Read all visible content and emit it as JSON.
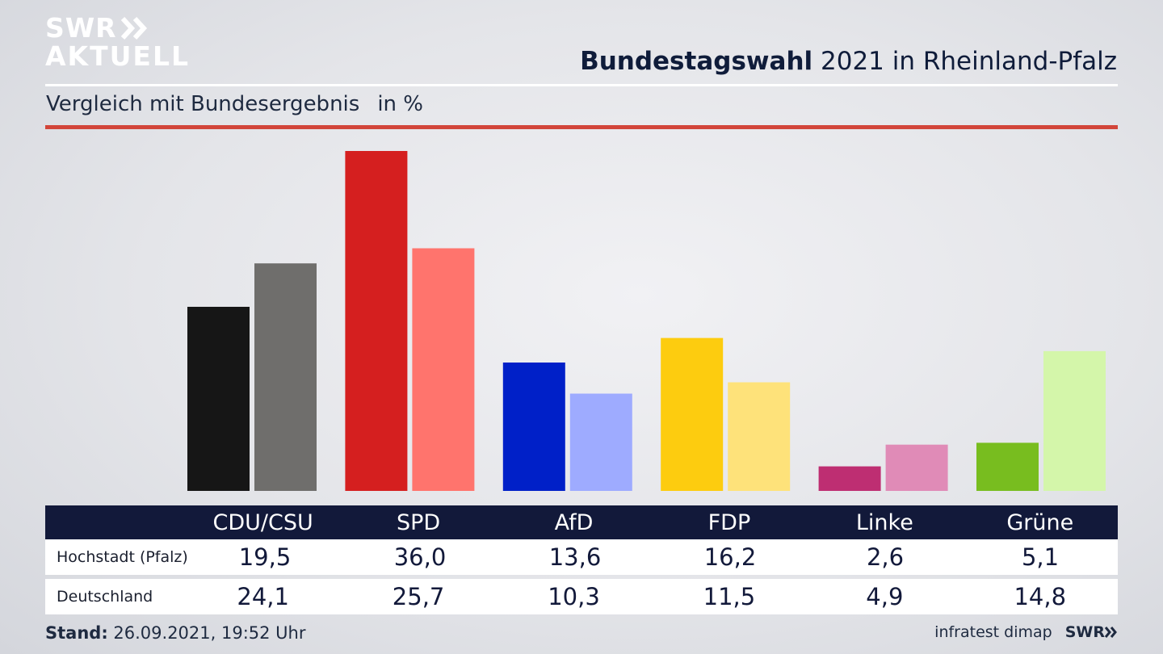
{
  "logo": {
    "line1": "SWR",
    "line2": "AKTUELL"
  },
  "header": {
    "title_bold": "Bundestagswahl",
    "title_rest": " 2021 in Rheinland-Pfalz"
  },
  "subheader": {
    "text": "Vergleich mit Bundesergebnis",
    "unit": "in %"
  },
  "colors": {
    "accent_rule": "#d2453a",
    "table_header": "#12193a"
  },
  "chart_data": {
    "type": "bar",
    "categories": [
      "CDU/CSU",
      "SPD",
      "AfD",
      "FDP",
      "Linke",
      "Grüne"
    ],
    "series": [
      {
        "name": "Hochstadt (Pfalz)",
        "values": [
          19.5,
          36.0,
          13.6,
          16.2,
          2.6,
          5.1
        ],
        "colors": [
          "#161616",
          "#d51f1f",
          "#0020c8",
          "#fdcc0f",
          "#be2e72",
          "#78bd1f"
        ]
      },
      {
        "name": "Deutschland",
        "values": [
          24.1,
          25.7,
          10.3,
          11.5,
          4.9,
          14.8
        ],
        "colors": [
          "#6f6e6c",
          "#ff746d",
          "#9eabff",
          "#fee27a",
          "#e08bb7",
          "#d4f6aa"
        ]
      }
    ],
    "ylim": [
      0,
      36.0
    ],
    "grid": false,
    "legend": "table below chart"
  },
  "table": {
    "columns": [
      "CDU/CSU",
      "SPD",
      "AfD",
      "FDP",
      "Linke",
      "Grüne"
    ],
    "rows": [
      {
        "label": "Hochstadt (Pfalz)",
        "values": [
          "19,5",
          "36,0",
          "13,6",
          "16,2",
          "2,6",
          "5,1"
        ]
      },
      {
        "label": "Deutschland",
        "values": [
          "24,1",
          "25,7",
          "10,3",
          "11,5",
          "4,9",
          "14,8"
        ]
      }
    ]
  },
  "footer": {
    "stand_label": "Stand:",
    "stand_value": " 26.09.2021, 19:52 Uhr",
    "source": "infratest dimap",
    "brand": "SWR"
  }
}
